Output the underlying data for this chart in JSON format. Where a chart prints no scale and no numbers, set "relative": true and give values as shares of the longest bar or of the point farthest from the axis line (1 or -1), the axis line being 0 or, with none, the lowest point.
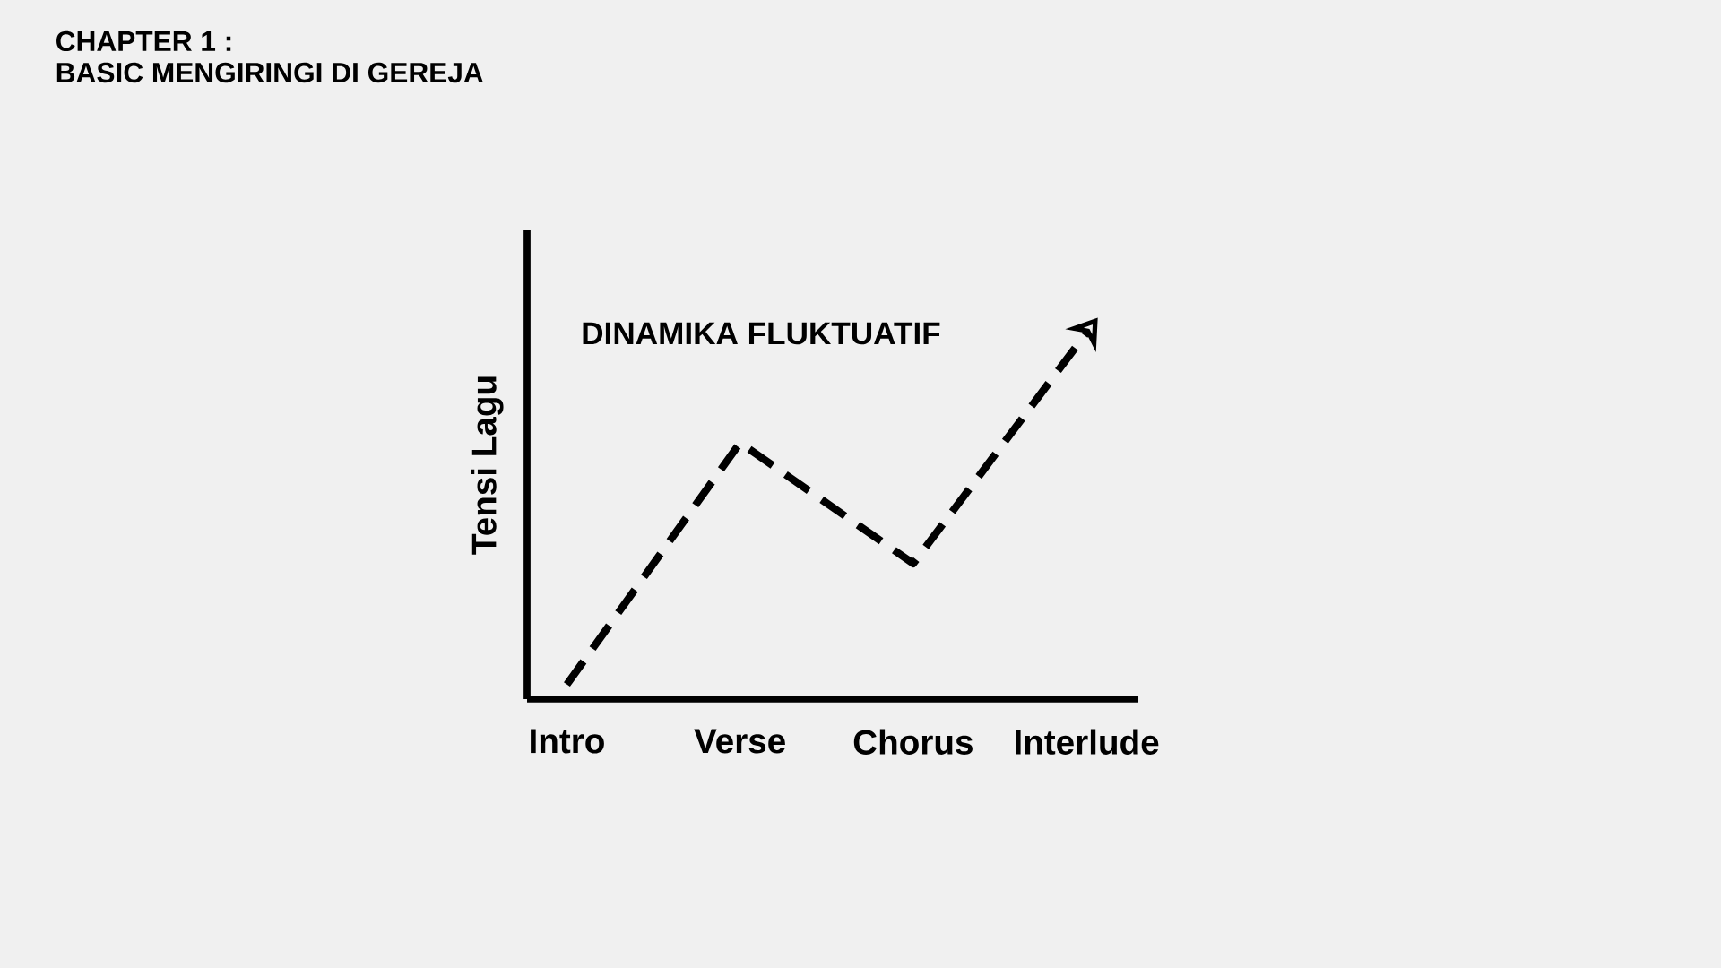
{
  "chart_data": {
    "type": "line",
    "title": "CHAPTER 1 :",
    "subtitle": "BASIC MENGIRINGI DI GEREJA",
    "ylabel": "Tensi Lagu",
    "annotations": [
      "DINAMIKA FLUKTUATIF"
    ],
    "categories": [
      "Intro",
      "Verse",
      "Chorus",
      "Interlude"
    ],
    "values": [
      0.04,
      0.7,
      0.37,
      1
    ],
    "color": "#000000",
    "relative": true,
    "line_style": "dashed",
    "marker": "none"
  }
}
